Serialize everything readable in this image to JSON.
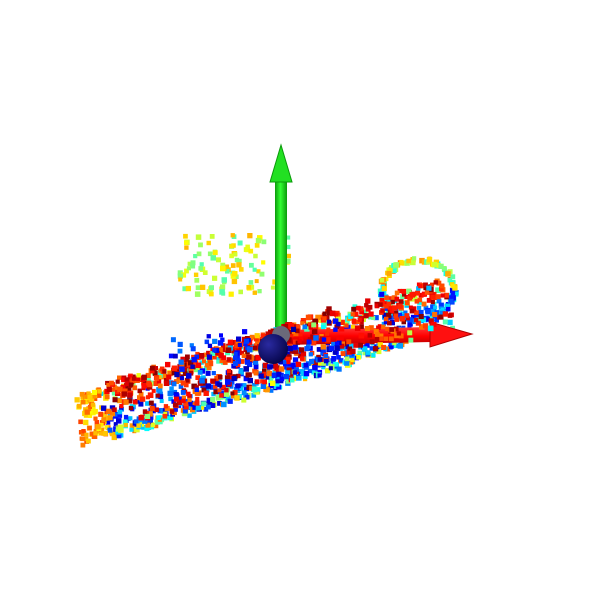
{
  "viewer": {
    "background_color": "#ffffff",
    "colormap": "jet",
    "colormap_stops": [
      "#00008f",
      "#0000ff",
      "#0080ff",
      "#00ffff",
      "#80ff80",
      "#ffff00",
      "#ff8000",
      "#ff0000",
      "#800000"
    ],
    "point_count": 1400,
    "axes": {
      "x_color": "#ff0000",
      "y_color": "#00e000",
      "z_color": "#0a0a6e"
    }
  }
}
